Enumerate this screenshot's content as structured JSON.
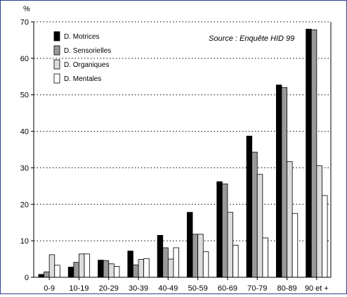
{
  "chart_data": {
    "type": "bar",
    "ylabel": "%",
    "ylim": [
      0,
      70
    ],
    "yticks": [
      0,
      10,
      20,
      30,
      40,
      50,
      60,
      70
    ],
    "grid": true,
    "annotation": "Source : Enquête HID 99",
    "legend_position": "top-left",
    "categories": [
      "0-9",
      "10-19",
      "20-29",
      "30-39",
      "40-49",
      "50-59",
      "60-69",
      "70-79",
      "80-89",
      "90 et +"
    ],
    "series": [
      {
        "name": "D. Motrices",
        "color": "#000000",
        "values": [
          0.8,
          2.8,
          4.7,
          7.2,
          11.5,
          17.8,
          26.2,
          38.7,
          52.7,
          68.0
        ]
      },
      {
        "name": "D. Sensorielles",
        "color": "#999999",
        "values": [
          1.5,
          4.1,
          4.6,
          3.4,
          8.1,
          11.8,
          25.6,
          34.3,
          52.0,
          67.8
        ]
      },
      {
        "name": "D. Organiques",
        "color": "#dcdcdc",
        "values": [
          6.2,
          6.4,
          3.7,
          4.9,
          5.0,
          11.8,
          17.8,
          28.2,
          31.7,
          30.6
        ]
      },
      {
        "name": "D. Mentales",
        "color": "#ffffff",
        "values": [
          3.3,
          6.4,
          3.0,
          5.1,
          8.1,
          7.0,
          8.8,
          10.8,
          17.5,
          22.4
        ]
      }
    ]
  }
}
